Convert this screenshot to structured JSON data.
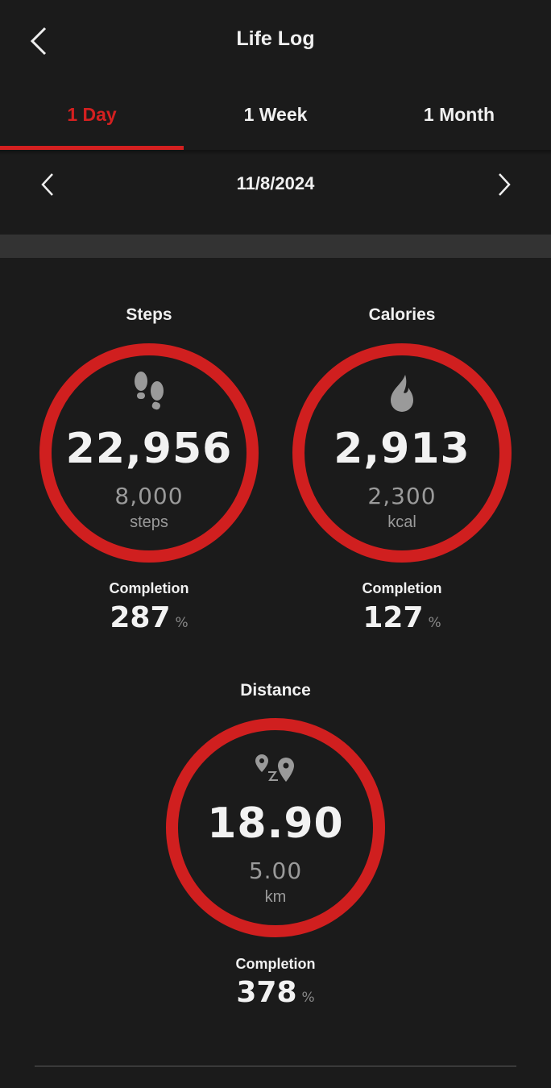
{
  "header": {
    "title": "Life Log"
  },
  "tabs": [
    {
      "label": "1 Day",
      "active": true
    },
    {
      "label": "1 Week",
      "active": false
    },
    {
      "label": "1 Month",
      "active": false
    }
  ],
  "date": "11/8/2024",
  "accent_color": "#d01f1f",
  "metrics": {
    "steps": {
      "label": "Steps",
      "icon": "footsteps-icon",
      "value": "22,956",
      "goal": "8,000",
      "unit": "steps",
      "completion_label": "Completion",
      "completion": "287",
      "pct": "%"
    },
    "calories": {
      "label": "Calories",
      "icon": "flame-icon",
      "value": "2,913",
      "goal": "2,300",
      "unit": "kcal",
      "completion_label": "Completion",
      "completion": "127",
      "pct": "%"
    },
    "distance": {
      "label": "Distance",
      "icon": "route-pins-icon",
      "value": "18.90",
      "goal": "5.00",
      "unit": "km",
      "completion_label": "Completion",
      "completion": "378",
      "pct": "%"
    }
  }
}
